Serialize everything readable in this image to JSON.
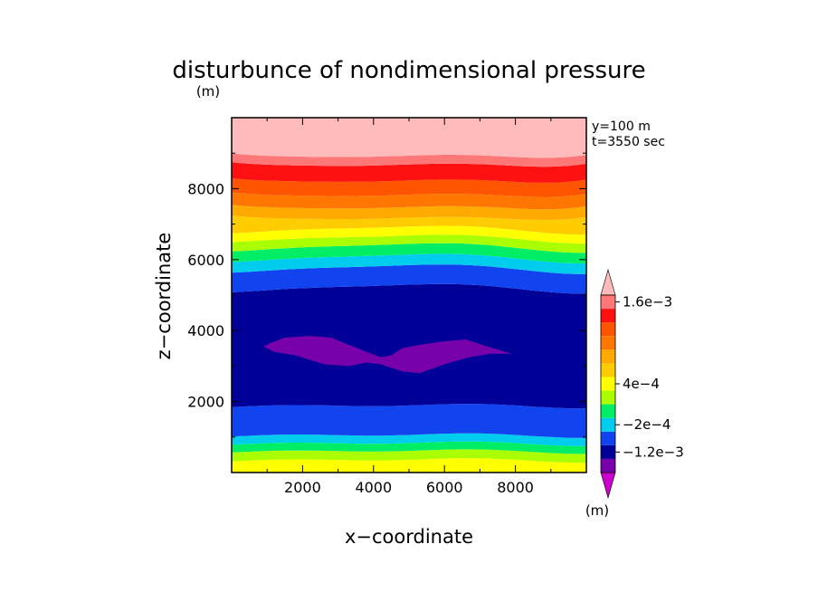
{
  "chart_data": {
    "type": "heatmap",
    "title": "disturbunce of nondimensional pressure",
    "xlabel": "x−coordinate",
    "ylabel": "z−coordinate",
    "x_unit": "(m)",
    "y_unit": "(m)",
    "colorbar_unit": "(m)",
    "annotations": [
      "y=100 m",
      "t=3550 sec"
    ],
    "xlim": [
      0,
      10000
    ],
    "ylim": [
      0,
      10000
    ],
    "x_ticks": [
      2000,
      4000,
      6000,
      8000
    ],
    "y_ticks": [
      2000,
      4000,
      6000,
      8000
    ],
    "colorbar": {
      "levels": [
        -0.0016,
        -0.0012,
        -0.0008,
        -0.0002,
        0.0,
        0.0002,
        0.0004,
        0.0006,
        0.0008,
        0.001,
        0.0012,
        0.0014,
        0.0016,
        0.0018
      ],
      "colors": [
        "#cc00cc",
        "#7700aa",
        "#000099",
        "#1144ee",
        "#00ccee",
        "#00ee66",
        "#aaff00",
        "#ffff00",
        "#ffcc00",
        "#ffaa00",
        "#ff7700",
        "#ff5500",
        "#ff1111",
        "#ff7777",
        "#ffbbbb"
      ],
      "tick_labels": [
        {
          "label": "1.6e−3",
          "value": 0.0016
        },
        {
          "label": "4e−4",
          "value": 0.0004
        },
        {
          "label": "−2e−4",
          "value": -0.0002
        },
        {
          "label": "−1.2e−3",
          "value": -0.0012
        }
      ]
    },
    "bands": [
      {
        "color": "#ffff00",
        "bottom": 0,
        "top": 350
      },
      {
        "color": "#aaff00",
        "bottom": 350,
        "top": 600
      },
      {
        "color": "#00ee66",
        "bottom": 600,
        "top": 820
      },
      {
        "color": "#00ccee",
        "bottom": 820,
        "top": 1050
      },
      {
        "color": "#1144ee",
        "bottom": 1050,
        "top": 1880
      },
      {
        "color": "#000099",
        "bottom": 1880,
        "top": 5200
      },
      {
        "color": "#1144ee",
        "bottom": 5200,
        "top": 5750
      },
      {
        "color": "#00ccee",
        "bottom": 5750,
        "top": 6050
      },
      {
        "color": "#00ee66",
        "bottom": 6050,
        "top": 6350
      },
      {
        "color": "#aaff00",
        "bottom": 6350,
        "top": 6600
      },
      {
        "color": "#ffff00",
        "bottom": 6600,
        "top": 6850
      },
      {
        "color": "#ffcc00",
        "bottom": 6850,
        "top": 7100
      },
      {
        "color": "#ffaa00",
        "bottom": 7100,
        "top": 7400
      },
      {
        "color": "#ff7700",
        "bottom": 7400,
        "top": 7750
      },
      {
        "color": "#ff5500",
        "bottom": 7750,
        "top": 8150
      },
      {
        "color": "#ff1111",
        "bottom": 8150,
        "top": 8600
      },
      {
        "color": "#ff7777",
        "bottom": 8600,
        "top": 8850
      },
      {
        "color": "#ffbbbb",
        "bottom": 8850,
        "top": 10000
      }
    ],
    "blob": {
      "color": "#7700aa",
      "points": [
        [
          900,
          3550
        ],
        [
          1100,
          3650
        ],
        [
          1500,
          3800
        ],
        [
          2200,
          3850
        ],
        [
          2800,
          3800
        ],
        [
          3300,
          3600
        ],
        [
          3800,
          3400
        ],
        [
          4200,
          3250
        ],
        [
          4500,
          3300
        ],
        [
          4800,
          3500
        ],
        [
          5300,
          3600
        ],
        [
          6000,
          3700
        ],
        [
          6600,
          3750
        ],
        [
          7200,
          3550
        ],
        [
          7900,
          3350
        ],
        [
          7300,
          3350
        ],
        [
          6700,
          3250
        ],
        [
          6000,
          3050
        ],
        [
          5300,
          2800
        ],
        [
          4800,
          2850
        ],
        [
          4200,
          3050
        ],
        [
          3800,
          3100
        ],
        [
          3300,
          3000
        ],
        [
          2600,
          3050
        ],
        [
          1800,
          3300
        ],
        [
          1200,
          3400
        ]
      ]
    }
  }
}
